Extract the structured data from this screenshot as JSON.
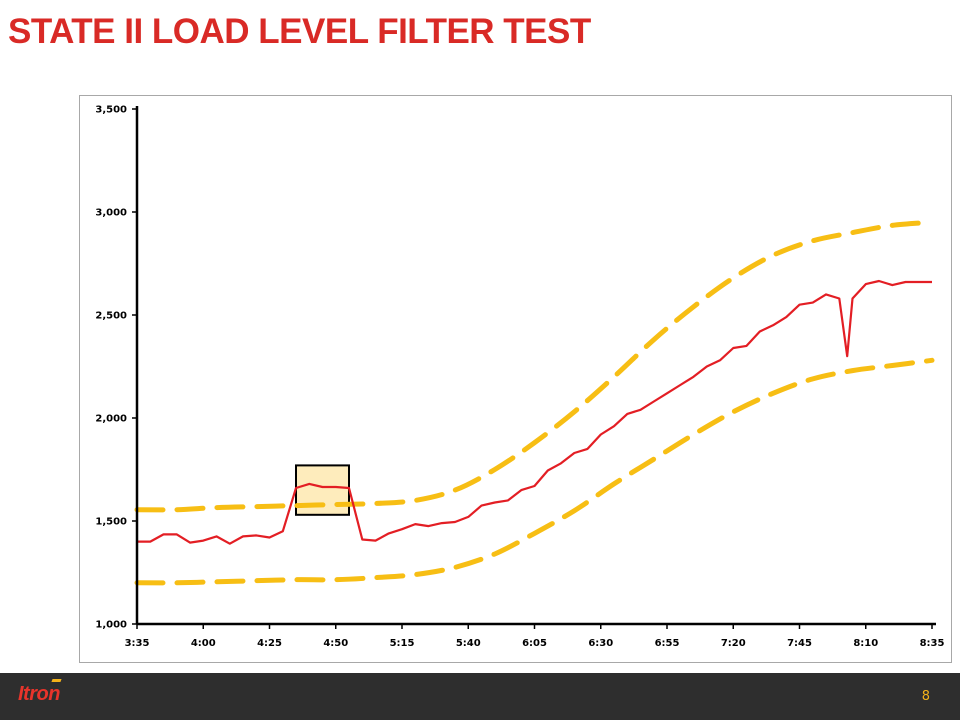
{
  "slide": {
    "title": "STATE II LOAD LEVEL FILTER TEST",
    "page_number": "8",
    "logo_text": "Itron"
  },
  "colors": {
    "title": "#d92a26",
    "load_line": "#e31e24",
    "limit_band": "#f7be14",
    "highlight_fill": "#fde5a6",
    "footer": "#2e2e2e"
  },
  "chart_data": {
    "type": "line",
    "title": "",
    "xlabel": "",
    "ylabel": "",
    "ylim": [
      1000,
      3500
    ],
    "y_ticks": [
      1000,
      1500,
      2000,
      2500,
      3000,
      3500
    ],
    "y_tick_labels": [
      "1,000",
      "1,500",
      "2,000",
      "2,500",
      "3,000",
      "3,500"
    ],
    "x_start_minutes": 215,
    "x_end_minutes": 515,
    "x_tick_labels": [
      "3:35",
      "4:00",
      "4:25",
      "4:50",
      "5:15",
      "5:40",
      "6:05",
      "6:30",
      "6:55",
      "7:20",
      "7:45",
      "8:10",
      "8:35"
    ],
    "grid": false,
    "legend": "none",
    "highlight_box": {
      "x_range": [
        "4:35",
        "4:55"
      ],
      "y_range": [
        1530,
        1770
      ]
    },
    "series": [
      {
        "style": "solid",
        "color": "#e31e24",
        "x": [
          "3:35",
          "3:40",
          "3:45",
          "3:50",
          "3:55",
          "4:00",
          "4:05",
          "4:10",
          "4:15",
          "4:20",
          "4:25",
          "4:30",
          "4:35",
          "4:40",
          "4:45",
          "4:50",
          "4:55",
          "5:00",
          "5:05",
          "5:10",
          "5:15",
          "5:20",
          "5:25",
          "5:30",
          "5:35",
          "5:40",
          "5:45",
          "5:50",
          "5:55",
          "6:00",
          "6:05",
          "6:10",
          "6:15",
          "6:20",
          "6:25",
          "6:30",
          "6:35",
          "6:40",
          "6:45",
          "6:50",
          "6:55",
          "7:00",
          "7:05",
          "7:10",
          "7:15",
          "7:20",
          "7:25",
          "7:30",
          "7:35",
          "7:40",
          "7:45",
          "7:50",
          "7:55",
          "8:00",
          "8:03",
          "8:05",
          "8:10",
          "8:15",
          "8:20",
          "8:25",
          "8:30",
          "8:35"
        ],
        "values": [
          1400,
          1400,
          1435,
          1435,
          1395,
          1405,
          1425,
          1390,
          1425,
          1430,
          1420,
          1450,
          1660,
          1680,
          1665,
          1665,
          1660,
          1410,
          1405,
          1440,
          1460,
          1485,
          1475,
          1490,
          1495,
          1520,
          1575,
          1590,
          1600,
          1650,
          1670,
          1745,
          1780,
          1830,
          1850,
          1920,
          1960,
          2020,
          2040,
          2080,
          2120,
          2160,
          2200,
          2250,
          2280,
          2340,
          2350,
          2420,
          2450,
          2490,
          2550,
          2560,
          2600,
          2580,
          2300,
          2580,
          2650,
          2665,
          2645,
          2660,
          2660,
          2660
        ]
      },
      {
        "style": "dashed",
        "color": "#f7be14",
        "x": [
          "3:35",
          "3:50",
          "4:05",
          "4:20",
          "4:35",
          "4:50",
          "5:05",
          "5:20",
          "5:35",
          "5:50",
          "6:05",
          "6:20",
          "6:35",
          "6:50",
          "7:05",
          "7:20",
          "7:35",
          "7:50",
          "8:05",
          "8:20",
          "8:35"
        ],
        "values": [
          1555,
          1555,
          1565,
          1570,
          1575,
          1580,
          1585,
          1600,
          1650,
          1750,
          1880,
          2030,
          2200,
          2380,
          2540,
          2680,
          2790,
          2860,
          2900,
          2935,
          2950
        ]
      },
      {
        "style": "dashed",
        "color": "#f7be14",
        "x": [
          "3:35",
          "3:50",
          "4:05",
          "4:20",
          "4:35",
          "4:50",
          "5:05",
          "5:20",
          "5:35",
          "5:50",
          "6:05",
          "6:20",
          "6:35",
          "6:50",
          "7:05",
          "7:20",
          "7:35",
          "7:50",
          "8:05",
          "8:20",
          "8:35"
        ],
        "values": [
          1200,
          1200,
          1205,
          1210,
          1215,
          1215,
          1225,
          1240,
          1275,
          1340,
          1440,
          1550,
          1680,
          1800,
          1920,
          2030,
          2120,
          2190,
          2230,
          2255,
          2280
        ]
      }
    ]
  }
}
